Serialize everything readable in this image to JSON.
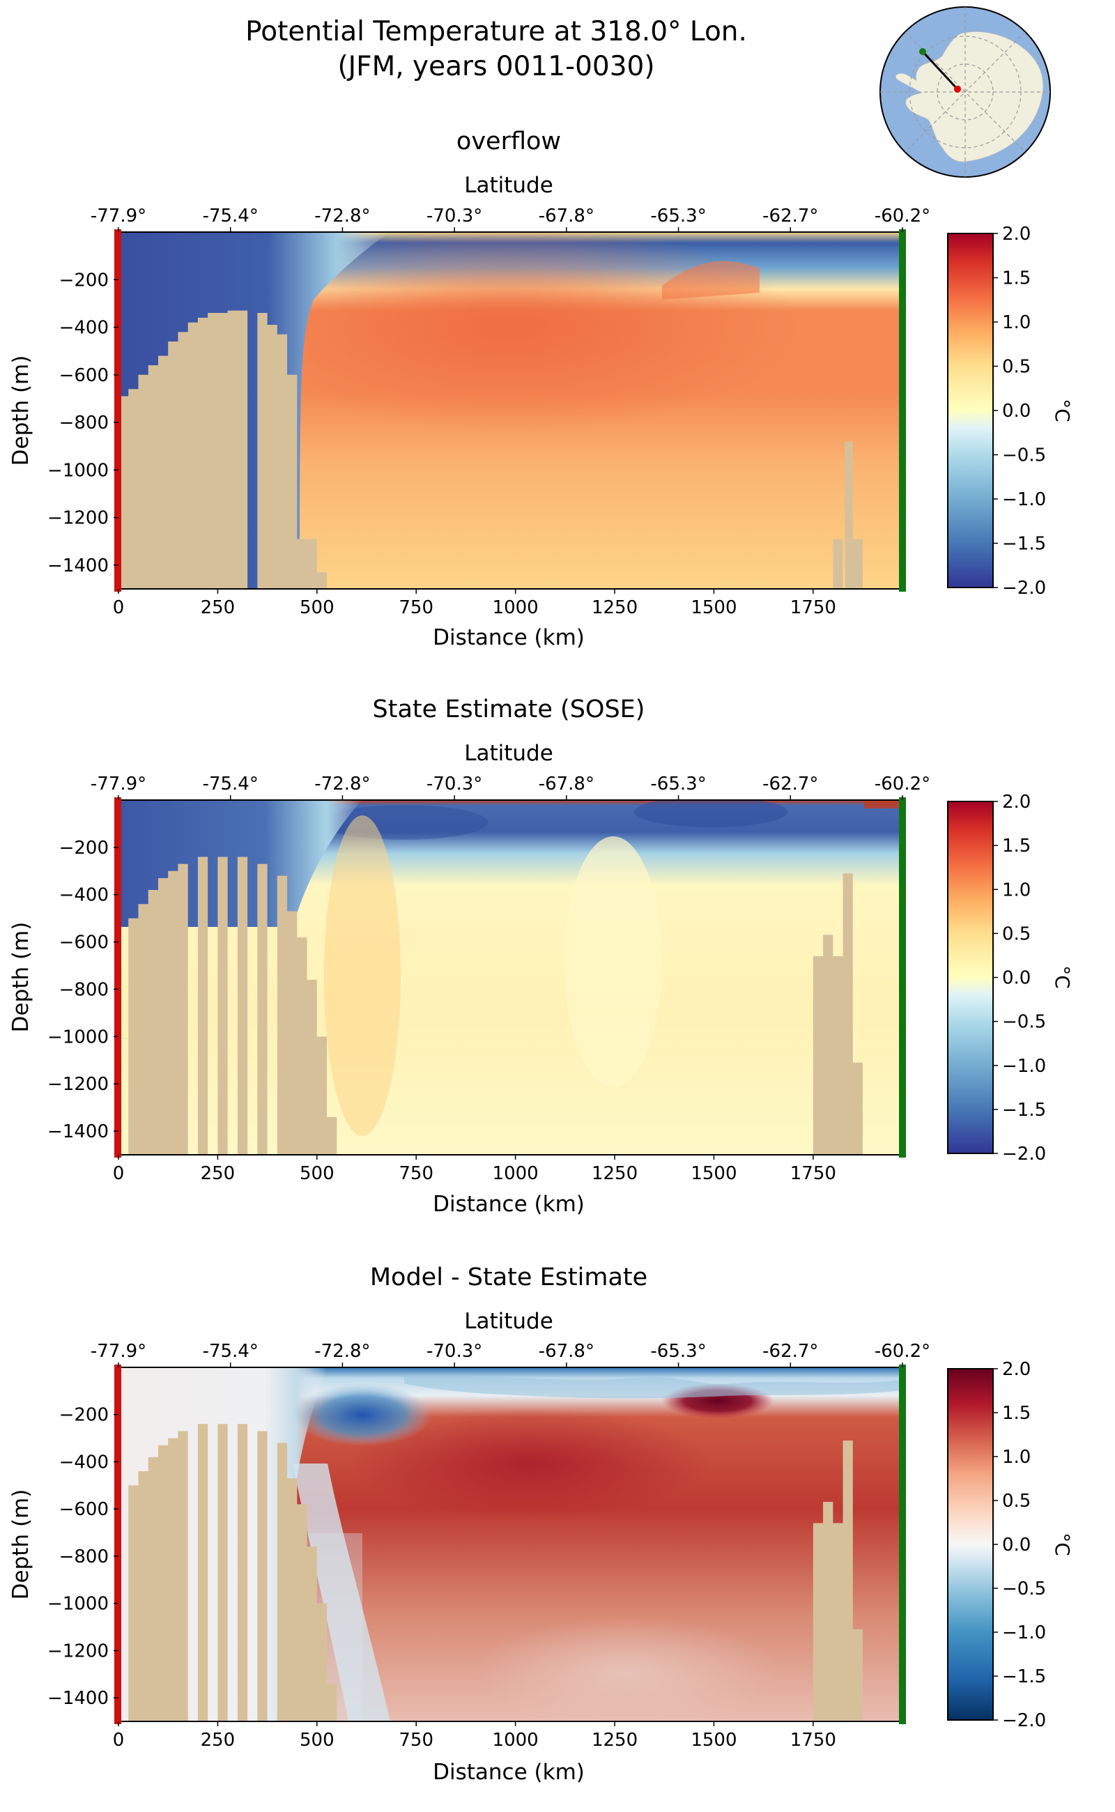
{
  "figure": {
    "title_line1": "Potential Temperature at 318.0° Lon.",
    "title_line2": "(JFM, years 0011-0030)"
  },
  "inset_map": {
    "description_icon": "antarctica-polar-map",
    "section_start_color": "#e60000",
    "section_end_color": "#1a7a1a",
    "ocean_color": "#8fb3df",
    "land_color": "#f0eedc"
  },
  "colors": {
    "bathymetry": "#d6c09a",
    "start_marker": "#cc1111",
    "end_marker": "#117711"
  },
  "panels": [
    {
      "title": "overflow",
      "x_axis_label": "Distance (km)",
      "y_axis_label": "Depth (m)",
      "top_axis_label": "Latitude",
      "colorbar_label": "°C",
      "colormap": "RdYlBu_r"
    },
    {
      "title": "State Estimate (SOSE)",
      "x_axis_label": "Distance (km)",
      "y_axis_label": "Depth (m)",
      "top_axis_label": "Latitude",
      "colorbar_label": "°C",
      "colormap": "RdYlBu_r"
    },
    {
      "title": "Model - State Estimate",
      "x_axis_label": "Distance (km)",
      "y_axis_label": "Depth (m)",
      "top_axis_label": "Latitude",
      "colorbar_label": "°C",
      "colormap": "RdBu_r"
    }
  ],
  "chart_data": [
    {
      "type": "heatmap",
      "title": "overflow",
      "xlabel": "Distance (km)",
      "ylabel": "Depth (m)",
      "xlim": [
        0,
        1975
      ],
      "ylim": [
        -1500,
        0
      ],
      "x_ticks": [
        0,
        250,
        500,
        750,
        1000,
        1250,
        1500,
        1750
      ],
      "y_ticks": [
        -200,
        -400,
        -600,
        -800,
        -1000,
        -1200,
        -1400
      ],
      "top_axis": {
        "label": "Latitude",
        "ticks": [
          "-77.9°",
          "-75.4°",
          "-72.8°",
          "-70.3°",
          "-67.8°",
          "-65.3°",
          "-62.7°",
          "-60.2°"
        ]
      },
      "colorbar": {
        "label": "°C",
        "range": [
          -2.0,
          2.0
        ],
        "ticks": [
          "2.0",
          "1.5",
          "1.0",
          "0.5",
          "0.0",
          "-0.5",
          "-1.0",
          "-1.5",
          "-2.0"
        ]
      },
      "field_description": {
        "surface_layer": {
          "depth_range": [
            0,
            -150
          ],
          "value": -1.6
        },
        "shelf_water": {
          "x_range": [
            0,
            450
          ],
          "value": -1.9
        },
        "core_warm_water": {
          "x_range": [
            550,
            1600
          ],
          "depth_range": [
            -200,
            -700
          ],
          "value": 1.1
        },
        "deep_water": {
          "x_range": [
            600,
            1975
          ],
          "depth_range": [
            -800,
            -1500
          ],
          "value": 0.5
        }
      },
      "bathymetry": [
        [
          0,
          -690
        ],
        [
          25,
          -660
        ],
        [
          50,
          -600
        ],
        [
          75,
          -560
        ],
        [
          100,
          -520
        ],
        [
          125,
          -460
        ],
        [
          150,
          -420
        ],
        [
          175,
          -380
        ],
        [
          200,
          -360
        ],
        [
          225,
          -340
        ],
        [
          250,
          -340
        ],
        [
          275,
          -330
        ],
        [
          300,
          -330
        ],
        [
          350,
          -340
        ],
        [
          375,
          -390
        ],
        [
          400,
          -430
        ],
        [
          425,
          -600
        ],
        [
          450,
          -1290
        ],
        [
          475,
          -1290
        ],
        [
          500,
          -1430
        ],
        [
          1800,
          -1290
        ],
        [
          1830,
          -880
        ],
        [
          1850,
          -1290
        ]
      ]
    },
    {
      "type": "heatmap",
      "title": "State Estimate (SOSE)",
      "xlabel": "Distance (km)",
      "ylabel": "Depth (m)",
      "xlim": [
        0,
        1975
      ],
      "ylim": [
        -1500,
        0
      ],
      "x_ticks": [
        0,
        250,
        500,
        750,
        1000,
        1250,
        1500,
        1750
      ],
      "y_ticks": [
        -200,
        -400,
        -600,
        -800,
        -1000,
        -1200,
        -1400
      ],
      "top_axis": {
        "label": "Latitude",
        "ticks": [
          "-77.9°",
          "-75.4°",
          "-72.8°",
          "-70.3°",
          "-67.8°",
          "-65.3°",
          "-62.7°",
          "-60.2°"
        ]
      },
      "colorbar": {
        "label": "°C",
        "range": [
          -2.0,
          2.0
        ],
        "ticks": [
          "2.0",
          "1.5",
          "1.0",
          "0.5",
          "0.0",
          "-0.5",
          "-1.0",
          "-1.5",
          "-2.0"
        ]
      },
      "field_description": {
        "surface_layer": {
          "depth_range": [
            0,
            -120
          ],
          "value": -1.5
        },
        "shelf_water": {
          "x_range": [
            0,
            420
          ],
          "value": -1.8
        },
        "interior": {
          "x_range": [
            500,
            1975
          ],
          "depth_range": [
            -200,
            -1500
          ],
          "value": 0.2
        }
      },
      "bathymetry": [
        [
          0,
          -1500
        ],
        [
          25,
          -500
        ],
        [
          50,
          -440
        ],
        [
          75,
          -380
        ],
        [
          100,
          -330
        ],
        [
          125,
          -300
        ],
        [
          150,
          -270
        ],
        [
          200,
          -240
        ],
        [
          250,
          -240
        ],
        [
          300,
          -240
        ],
        [
          350,
          -270
        ],
        [
          400,
          -320
        ],
        [
          425,
          -470
        ],
        [
          450,
          -580
        ],
        [
          475,
          -760
        ],
        [
          500,
          -1000
        ],
        [
          525,
          -1340
        ],
        [
          1750,
          -660
        ],
        [
          1775,
          -570
        ],
        [
          1800,
          -660
        ],
        [
          1825,
          -310
        ],
        [
          1850,
          -1110
        ]
      ]
    },
    {
      "type": "heatmap",
      "title": "Model - State Estimate",
      "xlabel": "Distance (km)",
      "ylabel": "Depth (m)",
      "xlim": [
        0,
        1975
      ],
      "ylim": [
        -1500,
        0
      ],
      "x_ticks": [
        0,
        250,
        500,
        750,
        1000,
        1250,
        1500,
        1750
      ],
      "y_ticks": [
        -200,
        -400,
        -600,
        -800,
        -1000,
        -1200,
        -1400
      ],
      "top_axis": {
        "label": "Latitude",
        "ticks": [
          "-77.9°",
          "-75.4°",
          "-72.8°",
          "-70.3°",
          "-67.8°",
          "-65.3°",
          "-62.7°",
          "-60.2°"
        ]
      },
      "colorbar": {
        "label": "°C",
        "range": [
          -2.0,
          2.0
        ],
        "ticks": [
          "2.0",
          "1.5",
          "1.0",
          "0.5",
          "0.0",
          "-0.5",
          "-1.0",
          "-1.5",
          "-2.0"
        ]
      },
      "field_description": {
        "cold_anomaly": {
          "x_range": [
            450,
            800
          ],
          "depth_range": [
            -100,
            -300
          ],
          "value": -1.5
        },
        "warm_anomaly_core": {
          "x_range": [
            650,
            1600
          ],
          "depth_range": [
            -200,
            -800
          ],
          "value": 1.2
        },
        "surface_warm_max": {
          "x_range": [
            1350,
            1500
          ],
          "depth_range": [
            -100,
            -150
          ],
          "value": 1.9
        }
      },
      "bathymetry": [
        [
          0,
          -1500
        ],
        [
          25,
          -500
        ],
        [
          50,
          -440
        ],
        [
          75,
          -380
        ],
        [
          100,
          -330
        ],
        [
          125,
          -300
        ],
        [
          150,
          -270
        ],
        [
          200,
          -240
        ],
        [
          250,
          -240
        ],
        [
          300,
          -240
        ],
        [
          350,
          -270
        ],
        [
          400,
          -320
        ],
        [
          425,
          -470
        ],
        [
          450,
          -580
        ],
        [
          475,
          -760
        ],
        [
          500,
          -1000
        ],
        [
          525,
          -1340
        ],
        [
          1750,
          -660
        ],
        [
          1775,
          -570
        ],
        [
          1800,
          -660
        ],
        [
          1825,
          -310
        ],
        [
          1850,
          -1110
        ]
      ]
    }
  ]
}
